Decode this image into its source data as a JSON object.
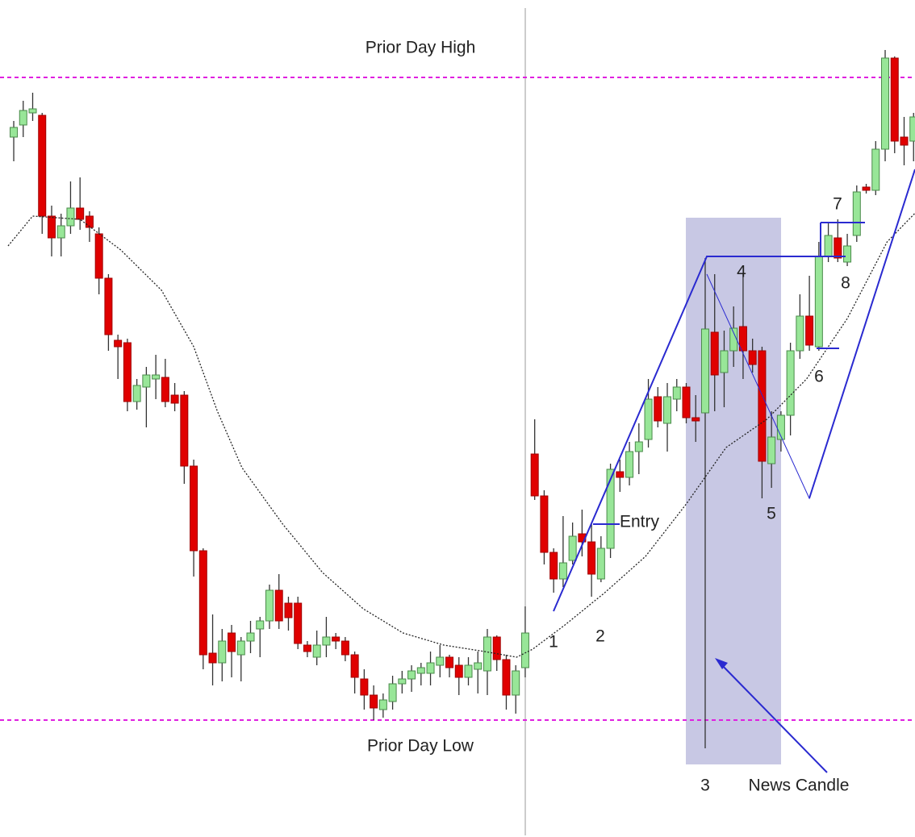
{
  "chart_data": {
    "type": "candlestick",
    "xlim": [
      -1.45,
      95.15
    ],
    "ylim": [
      -38,
      1000
    ],
    "up_color": "#98e698",
    "down_color": "#e00000",
    "candles": [
      {
        "open": 830,
        "high": 850,
        "low": 800,
        "close": 842
      },
      {
        "open": 845,
        "high": 875,
        "low": 830,
        "close": 863
      },
      {
        "open": 860,
        "high": 885,
        "low": 850,
        "close": 865
      },
      {
        "open": 857,
        "high": 860,
        "low": 710,
        "close": 732
      },
      {
        "open": 732,
        "high": 745,
        "low": 682,
        "close": 705
      },
      {
        "open": 705,
        "high": 735,
        "low": 682,
        "close": 720
      },
      {
        "open": 720,
        "high": 775,
        "low": 710,
        "close": 742
      },
      {
        "open": 742,
        "high": 780,
        "low": 715,
        "close": 728
      },
      {
        "open": 732,
        "high": 738,
        "low": 700,
        "close": 718
      },
      {
        "open": 710,
        "high": 718,
        "low": 635,
        "close": 655
      },
      {
        "open": 655,
        "high": 660,
        "low": 565,
        "close": 585
      },
      {
        "open": 578,
        "high": 585,
        "low": 530,
        "close": 570
      },
      {
        "open": 575,
        "high": 580,
        "low": 490,
        "close": 502
      },
      {
        "open": 502,
        "high": 530,
        "low": 492,
        "close": 522
      },
      {
        "open": 520,
        "high": 545,
        "low": 470,
        "close": 535
      },
      {
        "open": 530,
        "high": 560,
        "low": 505,
        "close": 535
      },
      {
        "open": 532,
        "high": 555,
        "low": 495,
        "close": 502
      },
      {
        "open": 510,
        "high": 525,
        "low": 490,
        "close": 500
      },
      {
        "open": 510,
        "high": 515,
        "low": 400,
        "close": 422
      },
      {
        "open": 422,
        "high": 430,
        "low": 285,
        "close": 317
      },
      {
        "open": 317,
        "high": 320,
        "low": 170,
        "close": 188
      },
      {
        "open": 190,
        "high": 238,
        "low": 150,
        "close": 178
      },
      {
        "open": 178,
        "high": 220,
        "low": 155,
        "close": 205
      },
      {
        "open": 215,
        "high": 225,
        "low": 160,
        "close": 192
      },
      {
        "open": 188,
        "high": 210,
        "low": 155,
        "close": 205
      },
      {
        "open": 205,
        "high": 230,
        "low": 190,
        "close": 215
      },
      {
        "open": 220,
        "high": 235,
        "low": 185,
        "close": 230
      },
      {
        "open": 230,
        "high": 275,
        "low": 220,
        "close": 268
      },
      {
        "open": 268,
        "high": 288,
        "low": 220,
        "close": 230
      },
      {
        "open": 252,
        "high": 260,
        "low": 218,
        "close": 234
      },
      {
        "open": 252,
        "high": 260,
        "low": 195,
        "close": 202
      },
      {
        "open": 200,
        "high": 205,
        "low": 185,
        "close": 192
      },
      {
        "open": 185,
        "high": 218,
        "low": 175,
        "close": 200
      },
      {
        "open": 200,
        "high": 235,
        "low": 185,
        "close": 210
      },
      {
        "open": 210,
        "high": 215,
        "low": 195,
        "close": 205
      },
      {
        "open": 205,
        "high": 210,
        "low": 180,
        "close": 188
      },
      {
        "open": 188,
        "high": 192,
        "low": 140,
        "close": 160
      },
      {
        "open": 158,
        "high": 170,
        "low": 120,
        "close": 138
      },
      {
        "open": 138,
        "high": 150,
        "low": 107,
        "close": 122
      },
      {
        "open": 120,
        "high": 140,
        "low": 110,
        "close": 132
      },
      {
        "open": 130,
        "high": 162,
        "low": 120,
        "close": 152
      },
      {
        "open": 152,
        "high": 168,
        "low": 140,
        "close": 158
      },
      {
        "open": 158,
        "high": 175,
        "low": 142,
        "close": 168
      },
      {
        "open": 165,
        "high": 178,
        "low": 150,
        "close": 172
      },
      {
        "open": 165,
        "high": 192,
        "low": 150,
        "close": 178
      },
      {
        "open": 175,
        "high": 200,
        "low": 160,
        "close": 185
      },
      {
        "open": 185,
        "high": 188,
        "low": 160,
        "close": 172
      },
      {
        "open": 175,
        "high": 185,
        "low": 138,
        "close": 160
      },
      {
        "open": 160,
        "high": 185,
        "low": 150,
        "close": 175
      },
      {
        "open": 170,
        "high": 192,
        "low": 140,
        "close": 178
      },
      {
        "open": 168,
        "high": 220,
        "low": 138,
        "close": 210
      },
      {
        "open": 210,
        "high": 212,
        "low": 168,
        "close": 182
      },
      {
        "open": 182,
        "high": 188,
        "low": 120,
        "close": 138
      },
      {
        "open": 138,
        "high": 175,
        "low": 115,
        "close": 168
      },
      {
        "open": 172,
        "high": 248,
        "low": 160,
        "close": 215
      },
      {
        "open": 437,
        "high": 480,
        "low": 380,
        "close": 385
      },
      {
        "open": 385,
        "high": 392,
        "low": 300,
        "close": 315
      },
      {
        "open": 315,
        "high": 320,
        "low": 265,
        "close": 282
      },
      {
        "open": 282,
        "high": 360,
        "low": 272,
        "close": 302
      },
      {
        "open": 305,
        "high": 352,
        "low": 300,
        "close": 335
      },
      {
        "open": 338,
        "high": 368,
        "low": 310,
        "close": 328
      },
      {
        "open": 328,
        "high": 350,
        "low": 260,
        "close": 288
      },
      {
        "open": 282,
        "high": 335,
        "low": 278,
        "close": 320
      },
      {
        "open": 320,
        "high": 425,
        "low": 308,
        "close": 418
      },
      {
        "open": 415,
        "high": 430,
        "low": 390,
        "close": 408
      },
      {
        "open": 408,
        "high": 452,
        "low": 398,
        "close": 440
      },
      {
        "open": 440,
        "high": 475,
        "low": 412,
        "close": 452
      },
      {
        "open": 455,
        "high": 530,
        "low": 445,
        "close": 505
      },
      {
        "open": 508,
        "high": 520,
        "low": 470,
        "close": 478
      },
      {
        "open": 475,
        "high": 525,
        "low": 440,
        "close": 508
      },
      {
        "open": 505,
        "high": 530,
        "low": 490,
        "close": 520
      },
      {
        "open": 520,
        "high": 525,
        "low": 475,
        "close": 482
      },
      {
        "open": 482,
        "high": 510,
        "low": 452,
        "close": 478
      },
      {
        "open": 488,
        "high": 680,
        "low": 72,
        "close": 592
      },
      {
        "open": 588,
        "high": 660,
        "low": 490,
        "close": 535
      },
      {
        "open": 538,
        "high": 590,
        "low": 495,
        "close": 565
      },
      {
        "open": 565,
        "high": 620,
        "low": 545,
        "close": 593
      },
      {
        "open": 595,
        "high": 660,
        "low": 530,
        "close": 565
      },
      {
        "open": 565,
        "high": 580,
        "low": 538,
        "close": 548
      },
      {
        "open": 565,
        "high": 570,
        "low": 382,
        "close": 428
      },
      {
        "open": 425,
        "high": 490,
        "low": 395,
        "close": 458
      },
      {
        "open": 455,
        "high": 490,
        "low": 440,
        "close": 485
      },
      {
        "open": 485,
        "high": 575,
        "low": 460,
        "close": 565
      },
      {
        "open": 565,
        "high": 635,
        "low": 555,
        "close": 608
      },
      {
        "open": 608,
        "high": 658,
        "low": 565,
        "close": 572
      },
      {
        "open": 570,
        "high": 700,
        "low": 565,
        "close": 682
      },
      {
        "open": 682,
        "high": 725,
        "low": 675,
        "close": 708
      },
      {
        "open": 705,
        "high": 728,
        "low": 675,
        "close": 680
      },
      {
        "open": 675,
        "high": 710,
        "low": 670,
        "close": 695
      },
      {
        "open": 708,
        "high": 770,
        "low": 700,
        "close": 762
      },
      {
        "open": 768,
        "high": 772,
        "low": 760,
        "close": 764
      },
      {
        "open": 764,
        "high": 825,
        "low": 758,
        "close": 815
      },
      {
        "open": 815,
        "high": 938,
        "low": 800,
        "close": 928
      },
      {
        "open": 928,
        "high": 930,
        "low": 810,
        "close": 825
      },
      {
        "open": 830,
        "high": 855,
        "low": 795,
        "close": 820
      },
      {
        "open": 825,
        "high": 860,
        "low": 800,
        "close": 855
      }
    ],
    "average": {
      "x": [
        -0.6,
        2,
        7,
        11.3,
        15.6,
        19,
        21.5,
        24.1,
        28.4,
        32.6,
        36.9,
        41.1,
        45.4,
        49.7,
        53.1,
        54.8,
        58.2,
        62.4,
        66.7,
        71,
        75.2,
        79.5,
        83.7,
        88,
        92.2,
        95.1
      ],
      "y": [
        695,
        732,
        728,
        690,
        640,
        570,
        490,
        420,
        350,
        290,
        245,
        215,
        200,
        192,
        185,
        195,
        225,
        265,
        310,
        375,
        445,
        480,
        530,
        605,
        700,
        735
      ]
    },
    "levels": [
      {
        "label": "Prior Day High",
        "value": 904,
        "color": "#e020e0"
      },
      {
        "label": "Prior Day Low",
        "value": 107,
        "color": "#e020e0"
      }
    ],
    "annotations": [
      "1",
      "2",
      "3",
      "4",
      "5",
      "6",
      "7",
      "8",
      "Entry",
      "News Candle"
    ]
  }
}
